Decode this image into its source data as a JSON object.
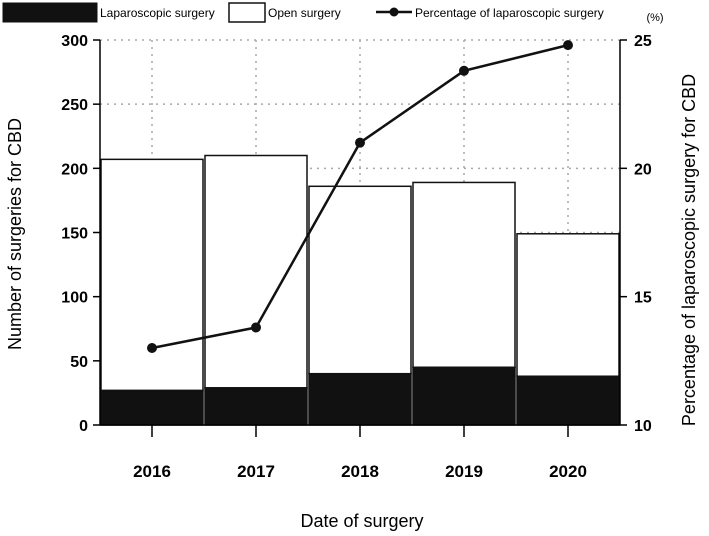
{
  "chart_data": {
    "type": "bar",
    "stacked": true,
    "categories": [
      "2016",
      "2017",
      "2018",
      "2019",
      "2020"
    ],
    "series": [
      {
        "name": "Laparoscopic surgery",
        "kind": "bar",
        "axis": "left",
        "color": "#111111",
        "values": [
          27,
          29,
          40,
          45,
          38
        ]
      },
      {
        "name": "Open surgery",
        "kind": "bar",
        "axis": "left",
        "color": "#ffffff",
        "values": [
          180,
          181,
          146,
          144,
          111
        ]
      },
      {
        "name": "Percentage of laparoscopic surgery",
        "kind": "line",
        "axis": "right",
        "color": "#111111",
        "values": [
          13.0,
          13.8,
          21.0,
          23.8,
          24.8
        ]
      }
    ],
    "xlabel": "Date of surgery",
    "ylabel": "Number  of surgeries for CBD",
    "ylabel_right": "Percentage of laparoscopic surgery for CBD",
    "right_unit": "(%)",
    "ylim": [
      0,
      300
    ],
    "ylim_right": [
      10,
      25
    ],
    "yticks": [
      "0",
      "50",
      "100",
      "150",
      "200",
      "250",
      "300"
    ],
    "yticks_right": [
      "10",
      "15",
      "20",
      "25"
    ],
    "grid": true,
    "grid_style": "dotted",
    "legend_position": "top"
  }
}
